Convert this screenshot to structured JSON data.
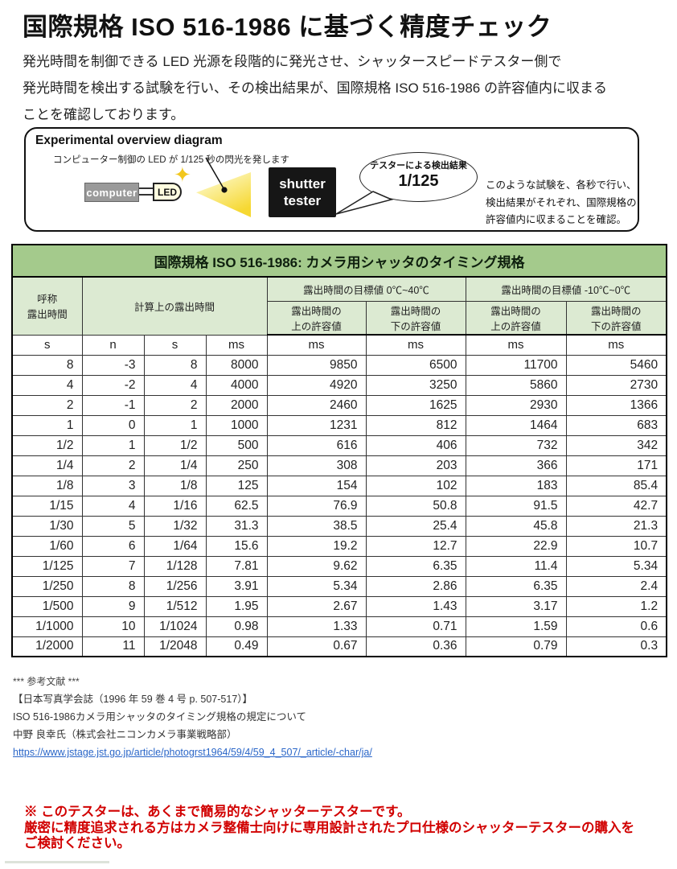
{
  "page": {
    "title": "国際規格 ISO 516-1986 に基づく精度チェック",
    "intro_lines": [
      "発光時間を制御できる LED 光源を段階的に発光させ、シャッタースピードテスター側で",
      "発光時間を検出する試験を行い、その検出結果が、国際規格 ISO 516-1986 の許容値内に収まる",
      "ことを確認しております。"
    ]
  },
  "diagram": {
    "title": "Experimental overview diagram",
    "led_caption": "コンピューター制御の LED が 1/125 秒の閃光を発します",
    "computer_label": "computer",
    "led_label": "LED",
    "sparkle_icon": "four-point-star",
    "tester_line1": "shutter",
    "tester_line2": "tester",
    "bubble_caption": "テスターによる検出結果",
    "bubble_value": "1/125",
    "note_lines": [
      "このような試験を、各秒で行い、",
      "検出結果がそれぞれ、国際規格の",
      "許容値内に収まることを確認。"
    ]
  },
  "chart_data": {
    "type": "table",
    "title": "国際規格 ISO 516-1986: カメラ用シャッタのタイミング規格",
    "name_col_header": "呼称\n露出時間",
    "calc_header": "計算上の露出時間",
    "group1_header": "露出時間の目標値 0℃~40℃",
    "group2_header": "露出時間の目標値 -10℃~0℃",
    "sub_upper": "露出時間の\n上の許容値",
    "sub_lower": "露出時間の\n下の許容値",
    "units": [
      "s",
      "n",
      "s",
      "ms",
      "ms",
      "ms",
      "ms",
      "ms"
    ],
    "rows": [
      [
        "8",
        "-3",
        "8",
        "8000",
        "9850",
        "6500",
        "11700",
        "5460"
      ],
      [
        "4",
        "-2",
        "4",
        "4000",
        "4920",
        "3250",
        "5860",
        "2730"
      ],
      [
        "2",
        "-1",
        "2",
        "2000",
        "2460",
        "1625",
        "2930",
        "1366"
      ],
      [
        "1",
        "0",
        "1",
        "1000",
        "1231",
        "812",
        "1464",
        "683"
      ],
      [
        "1/2",
        "1",
        "1/2",
        "500",
        "616",
        "406",
        "732",
        "342"
      ],
      [
        "1/4",
        "2",
        "1/4",
        "250",
        "308",
        "203",
        "366",
        "171"
      ],
      [
        "1/8",
        "3",
        "1/8",
        "125",
        "154",
        "102",
        "183",
        "85.4"
      ],
      [
        "1/15",
        "4",
        "1/16",
        "62.5",
        "76.9",
        "50.8",
        "91.5",
        "42.7"
      ],
      [
        "1/30",
        "5",
        "1/32",
        "31.3",
        "38.5",
        "25.4",
        "45.8",
        "21.3"
      ],
      [
        "1/60",
        "6",
        "1/64",
        "15.6",
        "19.2",
        "12.7",
        "22.9",
        "10.7"
      ],
      [
        "1/125",
        "7",
        "1/128",
        "7.81",
        "9.62",
        "6.35",
        "11.4",
        "5.34"
      ],
      [
        "1/250",
        "8",
        "1/256",
        "3.91",
        "5.34",
        "2.86",
        "6.35",
        "2.4"
      ],
      [
        "1/500",
        "9",
        "1/512",
        "1.95",
        "2.67",
        "1.43",
        "3.17",
        "1.2"
      ],
      [
        "1/1000",
        "10",
        "1/1024",
        "0.98",
        "1.33",
        "0.71",
        "1.59",
        "0.6"
      ],
      [
        "1/2000",
        "11",
        "1/2048",
        "0.49",
        "0.67",
        "0.36",
        "0.79",
        "0.3"
      ]
    ]
  },
  "references": {
    "heading": "*** 参考文献 ***",
    "lines": [
      "【日本写真学会誌（1996 年 59 巻 4 号 p. 507-517）】",
      "ISO 516-1986カメラ用シャッタのタイミング規格の規定について",
      "中野 良幸氏（株式会社ニコンカメラ事業戦略部）"
    ],
    "link_text": "https://www.jstage.jst.go.jp/article/photogrst1964/59/4/59_4_507/_article/-char/ja/"
  },
  "warning": {
    "lines": [
      "※ このテスターは、あくまで簡易的なシャッターテスターです。",
      "厳密に精度追求される方はカメラ整備士向けに専用設計されたプロ仕様のシャッターテスターの購入を",
      "ご検討ください。"
    ]
  },
  "colors": {
    "table_title_green": "#a4ca8c",
    "table_header_green": "#dcead2",
    "warning_red": "#d10000",
    "link_blue": "#2a66c8",
    "cone_yellow": "#f6d832",
    "led_pale_yellow": "#fffde0",
    "computer_gray": "#9a9a9a",
    "tester_black": "#161616"
  }
}
